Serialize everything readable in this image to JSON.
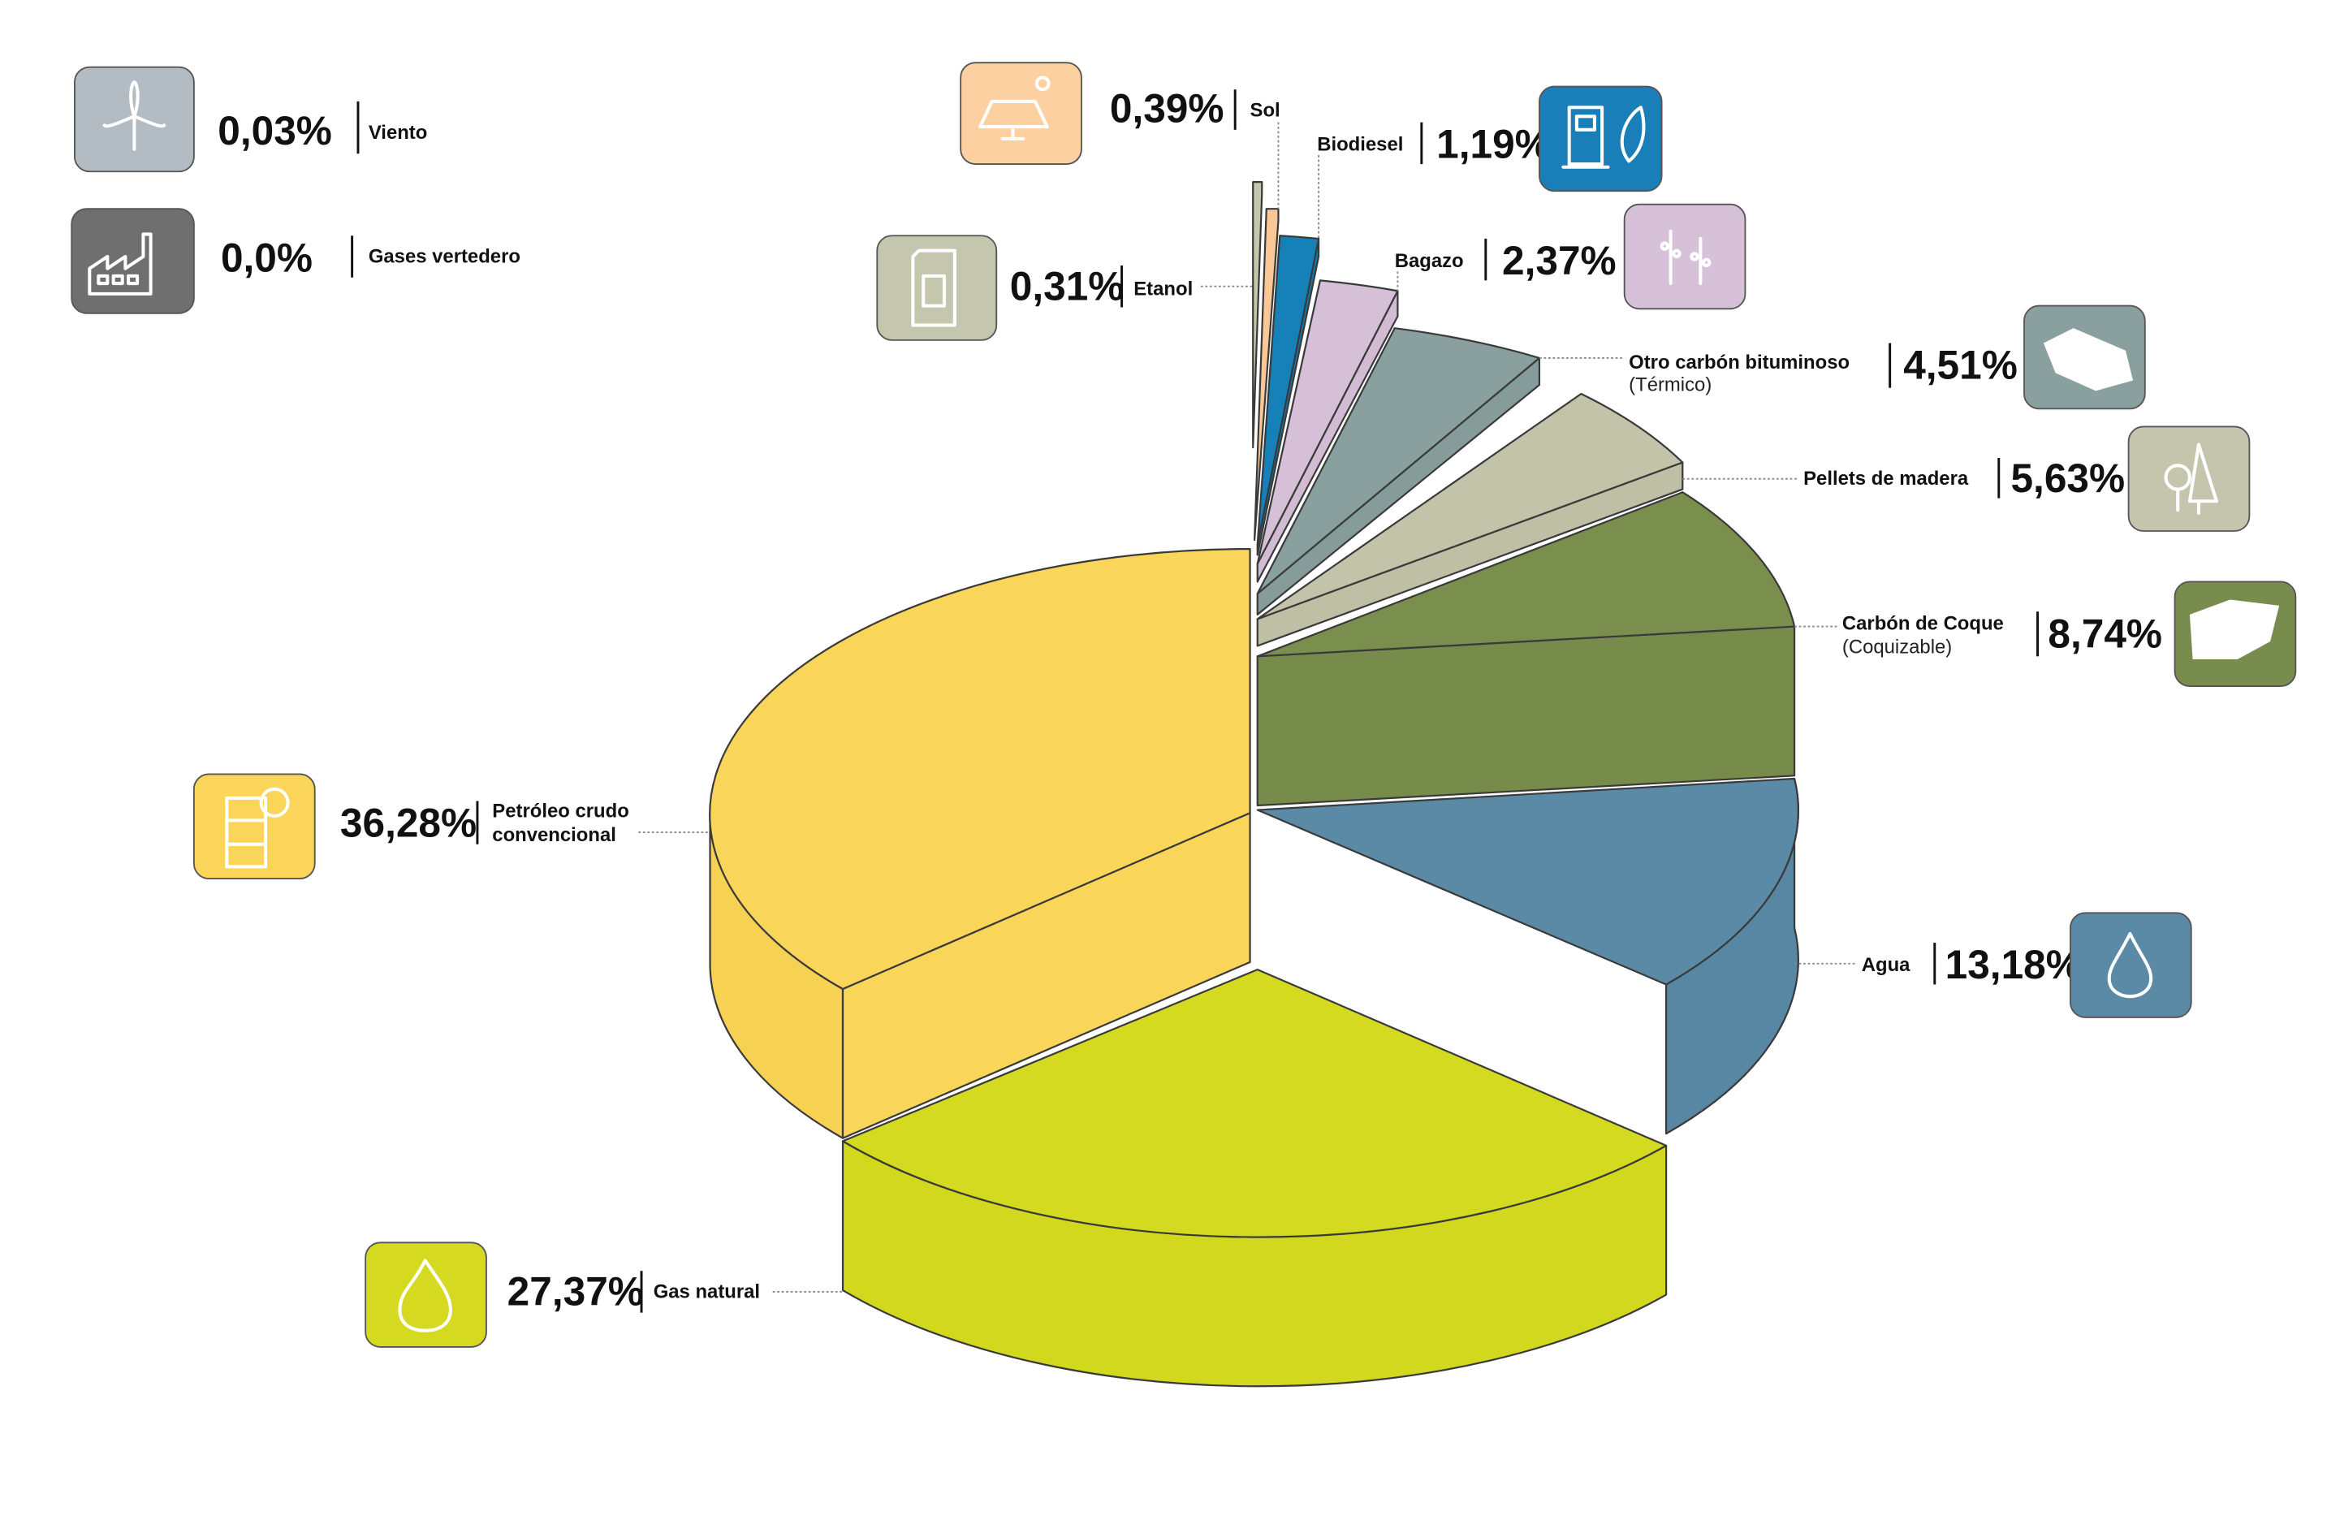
{
  "chart_data": {
    "type": "pie",
    "style": "3d-exploded",
    "unit": "%",
    "slices": [
      {
        "label": "Petróleo crudo",
        "label2": "convencional",
        "value": 36.28,
        "value_label": "36,28%",
        "color": "#f9d65a",
        "icon": "oil-barrel-icon"
      },
      {
        "label": "Gas natural",
        "value": 27.37,
        "value_label": "27,37%",
        "color": "#d4da20",
        "icon": "flame-icon"
      },
      {
        "label": "Agua",
        "value": 13.18,
        "value_label": "13,18%",
        "color": "#5a8aa5",
        "icon": "water-drop-icon"
      },
      {
        "label": "Carbón de Coque",
        "sublabel": "(Coquizable)",
        "value": 8.74,
        "value_label": "8,74%",
        "color": "#7a8e4e",
        "icon": "coal-block-icon"
      },
      {
        "label": "Pellets de madera",
        "value": 5.63,
        "value_label": "5,63%",
        "color": "#c3c3aa",
        "icon": "trees-icon"
      },
      {
        "label": "Otro carbón bituminoso",
        "sublabel": "(Térmico)",
        "value": 4.51,
        "value_label": "4,51%",
        "color": "#89a09e",
        "icon": "coal-rock-icon"
      },
      {
        "label": "Bagazo",
        "value": 2.37,
        "value_label": "2,37%",
        "color": "#d6c0d8",
        "icon": "sugarcane-icon"
      },
      {
        "label": "Biodiesel",
        "value": 1.19,
        "value_label": "1,19%",
        "color": "#1680b9",
        "icon": "fuel-pump-leaf-icon"
      },
      {
        "label": "Sol",
        "value": 0.39,
        "value_label": "0,39%",
        "color": "#f9c896",
        "icon": "solar-panel-icon"
      },
      {
        "label": "Etanol",
        "value": 0.31,
        "value_label": "0,31%",
        "color": "#c5c7ad",
        "icon": "jerrycan-icon"
      },
      {
        "label": "Viento",
        "value": 0.03,
        "value_label": "0,03%",
        "color": "#b4bcc3",
        "icon": "wind-turbine-icon"
      },
      {
        "label": "Gases vertedero",
        "value": 0.0,
        "value_label": "0,0%",
        "color": "#6f6f6f",
        "icon": "factory-icon"
      }
    ]
  }
}
